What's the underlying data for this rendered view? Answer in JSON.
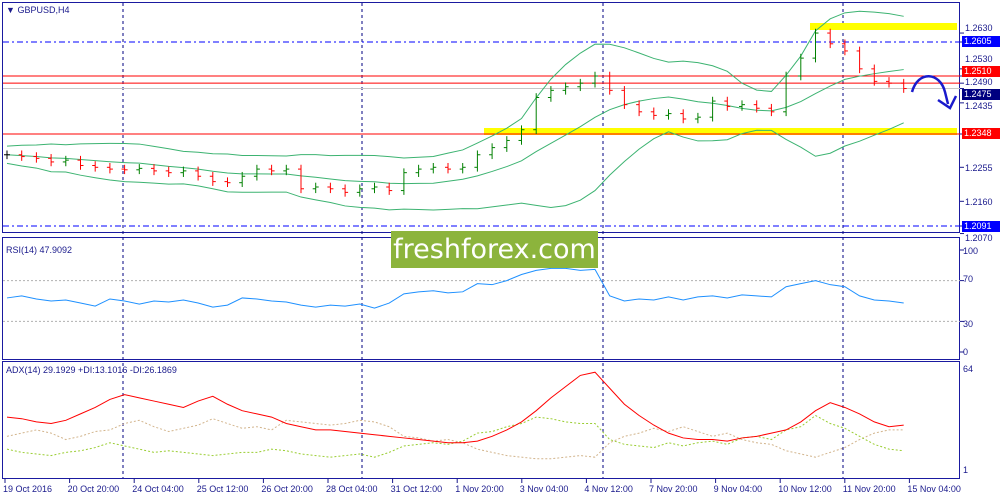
{
  "window": {
    "symbol_title": "GBPUSD,H4"
  },
  "watermark": "freshforex.com",
  "price_axis": {
    "ticks": [
      "1.2630",
      "1.2530",
      "1.2490",
      "1.2435",
      "1.2255",
      "1.2160",
      "1.2070"
    ],
    "markers": [
      {
        "value": "1.2605",
        "color": "#0000ff"
      },
      {
        "value": "1.2510",
        "color": "#ff0000"
      },
      {
        "value": "1.2475",
        "color": "#000080"
      },
      {
        "value": "1.2348",
        "color": "#ff0000"
      },
      {
        "value": "1.2091",
        "color": "#0000ff"
      }
    ]
  },
  "rsi": {
    "title": "RSI(14) 47.9092",
    "levels": [
      "100",
      "70",
      "30",
      "0"
    ],
    "color": "#1e90ff"
  },
  "adx": {
    "title": "ADX(14) 29.1929 +DI:13.1016 -DI:26.1869",
    "levels": [
      "64",
      "1"
    ],
    "adx_color": "#ff0000",
    "plus_di_color": "#9acd32",
    "minus_di_color": "#d2b48c"
  },
  "time_axis": [
    "19 Oct 2016",
    "20 Oct 20:00",
    "24 Oct 04:00",
    "25 Oct 12:00",
    "26 Oct 20:00",
    "28 Oct 04:00",
    "31 Oct 12:00",
    "1 Nov 20:00",
    "3 Nov 04:00",
    "4 Nov 12:00",
    "7 Nov 20:00",
    "9 Nov 04:00",
    "10 Nov 12:00",
    "11 Nov 20:00",
    "15 Nov 04:00"
  ],
  "chart_data": [
    {
      "type": "line",
      "title": "GBPUSD,H4",
      "levels": [
        1.2605,
        1.251,
        1.249,
        1.2475,
        1.2348,
        1.2091
      ],
      "closes": [
        1.229,
        1.2285,
        1.228,
        1.227,
        1.2275,
        1.226,
        1.2255,
        1.225,
        1.2248,
        1.2252,
        1.2245,
        1.224,
        1.2245,
        1.223,
        1.2215,
        1.2212,
        1.223,
        1.225,
        1.2245,
        1.225,
        1.2195,
        1.22,
        1.2195,
        1.2185,
        1.2195,
        1.22,
        1.219,
        1.224,
        1.225,
        1.2255,
        1.225,
        1.2255,
        1.229,
        1.231,
        1.233,
        1.236,
        1.245,
        1.247,
        1.248,
        1.249,
        1.251,
        1.247,
        1.243,
        1.241,
        1.24,
        1.2405,
        1.239,
        1.2395,
        1.244,
        1.2425,
        1.243,
        1.242,
        1.241,
        1.251,
        1.256,
        1.263,
        1.26,
        1.258,
        1.253,
        1.2495,
        1.249,
        1.2475
      ],
      "ylim": [
        1.206,
        1.268
      ]
    },
    {
      "type": "line",
      "title": "RSI(14) 47.9092",
      "ylim": [
        0,
        100
      ],
      "values": [
        53,
        55,
        52,
        50,
        51,
        48,
        45,
        52,
        50,
        47,
        50,
        49,
        51,
        48,
        44,
        46,
        53,
        52,
        50,
        49,
        46,
        44,
        46,
        45,
        47,
        43,
        48,
        57,
        59,
        60,
        58,
        59,
        67,
        66,
        70,
        76,
        80,
        82,
        82,
        80,
        81,
        55,
        50,
        52,
        51,
        54,
        51,
        54,
        55,
        53,
        56,
        55,
        54,
        64,
        67,
        70,
        66,
        64,
        55,
        51,
        50,
        48
      ]
    },
    {
      "type": "line",
      "title": "ADX(14)",
      "ylim": [
        1,
        64
      ],
      "series": [
        {
          "name": "ADX",
          "values": [
            34,
            33,
            31,
            30,
            32,
            36,
            40,
            45,
            48,
            46,
            44,
            42,
            40,
            44,
            47,
            42,
            38,
            36,
            34,
            30,
            28,
            26,
            26,
            25,
            24,
            23,
            22,
            21,
            20,
            19,
            18,
            18,
            19,
            22,
            26,
            31,
            38,
            46,
            53,
            60,
            62,
            52,
            42,
            35,
            29,
            24,
            21,
            20,
            20,
            19,
            21,
            22,
            24,
            26,
            31,
            38,
            43,
            40,
            36,
            31,
            28,
            29
          ]
        },
        {
          "name": "+DI",
          "values": [
            14,
            12,
            11,
            10,
            12,
            13,
            15,
            18,
            16,
            14,
            12,
            13,
            12,
            11,
            10,
            11,
            12,
            12,
            14,
            13,
            11,
            10,
            9,
            10,
            11,
            9,
            12,
            16,
            17,
            18,
            17,
            19,
            24,
            25,
            28,
            30,
            34,
            33,
            31,
            30,
            30,
            20,
            17,
            16,
            15,
            18,
            16,
            18,
            19,
            17,
            21,
            22,
            20,
            26,
            28,
            35,
            30,
            27,
            22,
            17,
            14,
            13
          ]
        },
        {
          "name": "-DI",
          "values": [
            22,
            24,
            26,
            24,
            20,
            22,
            25,
            26,
            30,
            32,
            28,
            25,
            27,
            29,
            33,
            30,
            27,
            28,
            26,
            32,
            31,
            30,
            29,
            30,
            32,
            31,
            28,
            22,
            21,
            19,
            20,
            18,
            14,
            12,
            10,
            9,
            8,
            8,
            9,
            10,
            9,
            18,
            22,
            24,
            27,
            25,
            28,
            25,
            22,
            24,
            20,
            18,
            17,
            13,
            11,
            9,
            12,
            15,
            20,
            24,
            26,
            26
          ]
        }
      ]
    }
  ]
}
